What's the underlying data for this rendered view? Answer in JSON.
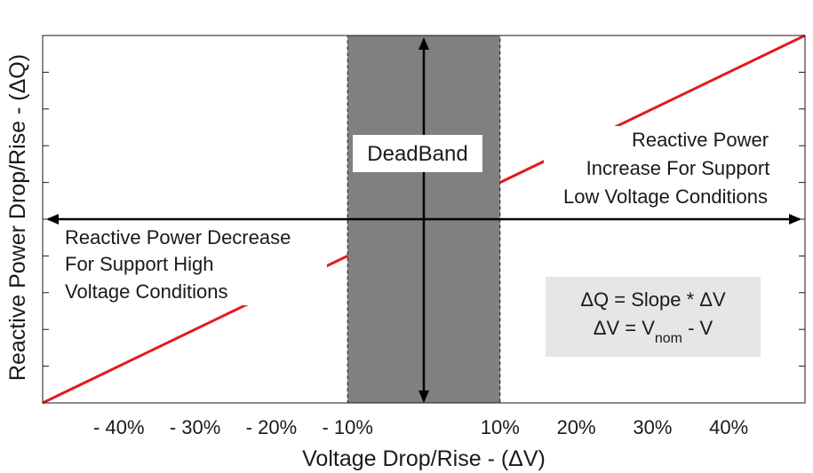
{
  "chart_data": {
    "type": "line",
    "title": "",
    "xlabel": "Voltage Drop/Rise - (ΔV)",
    "ylabel": "Reactive Power Drop/Rise - (ΔQ)",
    "xlim": [
      -50,
      50
    ],
    "ylim": [
      -1,
      1
    ],
    "x_ticks": [
      -40,
      -30,
      -20,
      -10,
      10,
      20,
      30,
      40
    ],
    "x_tick_labels": [
      "- 40%",
      "- 30%",
      "- 20%",
      "- 10%",
      "10%",
      "20%",
      "30%",
      "40%"
    ],
    "grid": false,
    "deadband": {
      "label": "DeadBand",
      "x_range": [
        -10,
        10
      ],
      "color": "#808080"
    },
    "series": [
      {
        "name": "Reactive Power Decrease",
        "color": "#e31a1c",
        "x": [
          -50,
          -10
        ],
        "y": [
          -1.0,
          -0.2
        ]
      },
      {
        "name": "Reactive Power Increase",
        "color": "#e31a1c",
        "x": [
          10,
          50
        ],
        "y": [
          0.2,
          1.0
        ]
      }
    ],
    "annotations": {
      "increase": [
        "Reactive Power",
        "Increase For Support",
        "Low Voltage Conditions"
      ],
      "decrease": [
        "Reactive Power Decrease",
        "For Support High",
        "Voltage Conditions"
      ],
      "formula": {
        "line1": "ΔQ = Slope * ΔV",
        "line2_prefix": "ΔV = V",
        "line2_sub": "nom",
        "line2_suffix": " - V"
      }
    }
  }
}
